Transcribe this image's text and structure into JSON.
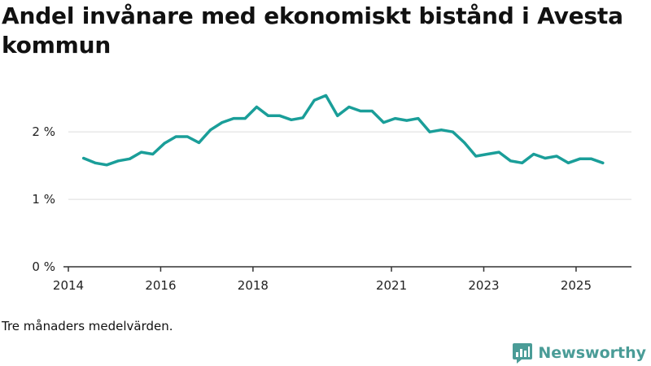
{
  "chart_data": {
    "type": "line",
    "title": "Andel invånare med ekonomiskt bistånd i Avesta kommun",
    "note": "Tre månaders medelvärden.",
    "xlabel": "",
    "ylabel": "",
    "x_tick_labels": [
      "2014",
      "2016",
      "2018",
      "2021",
      "2023",
      "2025"
    ],
    "x_tick_values": [
      2014.0,
      2016.0,
      2018.0,
      2021.0,
      2023.0,
      2025.0
    ],
    "xlim": [
      2014.0,
      2026.2
    ],
    "y_tick_labels": [
      "0 %",
      "1 %",
      "2 %"
    ],
    "y_tick_values": [
      0,
      1,
      2
    ],
    "ylim": [
      0,
      2.75
    ],
    "grid": true,
    "series": [
      {
        "name": "Avesta kommun",
        "color": "#1a9e99",
        "x": [
          2014.33,
          2014.58,
          2014.83,
          2015.08,
          2015.33,
          2015.58,
          2015.83,
          2016.08,
          2016.33,
          2016.58,
          2016.83,
          2017.08,
          2017.33,
          2017.58,
          2017.83,
          2018.08,
          2018.33,
          2018.58,
          2018.83,
          2019.08,
          2019.33,
          2019.58,
          2019.83,
          2020.08,
          2020.33,
          2020.58,
          2020.83,
          2021.08,
          2021.33,
          2021.58,
          2021.83,
          2022.08,
          2022.33,
          2022.58,
          2022.83,
          2023.08,
          2023.33,
          2023.58,
          2023.83,
          2024.08,
          2024.33,
          2024.58,
          2024.83,
          2025.08,
          2025.33,
          2025.58
        ],
        "values": [
          1.61,
          1.54,
          1.51,
          1.57,
          1.6,
          1.7,
          1.67,
          1.83,
          1.93,
          1.93,
          1.84,
          2.03,
          2.14,
          2.2,
          2.2,
          2.37,
          2.24,
          2.24,
          2.18,
          2.21,
          2.47,
          2.54,
          2.24,
          2.37,
          2.31,
          2.31,
          2.14,
          2.2,
          2.17,
          2.2,
          2.0,
          2.03,
          2.0,
          1.84,
          1.64,
          1.67,
          1.7,
          1.57,
          1.54,
          1.67,
          1.61,
          1.64,
          1.54,
          1.6,
          1.6,
          1.54
        ]
      }
    ]
  },
  "branding": {
    "name": "Newsworthy"
  },
  "colors": {
    "line": "#1a9e99",
    "grid": "#dddddd",
    "axis": "#333333",
    "brand": "#4a9c97"
  }
}
